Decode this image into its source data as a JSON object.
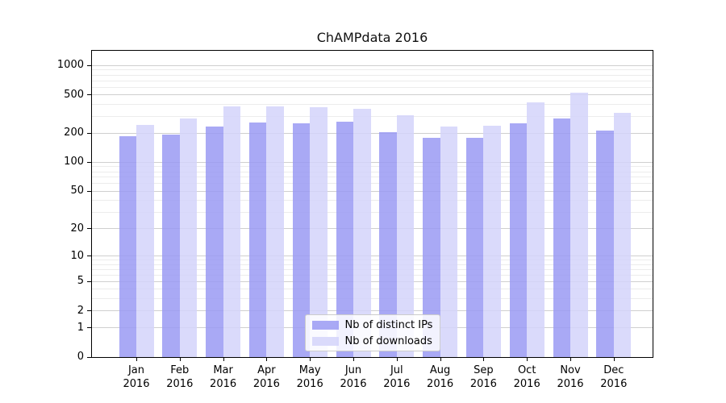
{
  "chart_data": {
    "type": "bar",
    "title": "ChAMPdata 2016",
    "categories": [
      "Jan 2016",
      "Feb 2016",
      "Mar 2016",
      "Apr 2016",
      "May 2016",
      "Jun 2016",
      "Jul 2016",
      "Aug 2016",
      "Sep 2016",
      "Oct 2016",
      "Nov 2016",
      "Dec 2016"
    ],
    "series": [
      {
        "name": "Nb of distinct IPs",
        "color": "#9a9af3",
        "alpha": 0.85,
        "values": [
          186,
          195,
          235,
          259,
          254,
          264,
          206,
          180,
          180,
          254,
          284,
          214
        ]
      },
      {
        "name": "Nb of downloads",
        "color": "#d4d4fa",
        "alpha": 0.85,
        "values": [
          244,
          284,
          379,
          379,
          372,
          357,
          307,
          235,
          240,
          417,
          523,
          325
        ]
      }
    ],
    "xlabel": "",
    "ylabel": "",
    "y_scale": "symlog (log of 1+value)",
    "ylim": [
      0,
      1400
    ],
    "y_ticks": [
      0,
      1,
      2,
      5,
      10,
      20,
      50,
      100,
      200,
      500,
      1000
    ],
    "y_minor_gridlines": [
      3,
      4,
      6,
      7,
      8,
      9,
      30,
      40,
      60,
      70,
      80,
      90,
      300,
      400,
      600,
      700,
      800,
      900
    ],
    "grid": "both",
    "legend_position": "lower center"
  },
  "colors": {
    "background": "#ffffff",
    "axis": "#000000",
    "grid_major": "#cfcfcf",
    "grid_minor": "#ececec",
    "text": "#111111",
    "legend_border": "#cccccc"
  }
}
